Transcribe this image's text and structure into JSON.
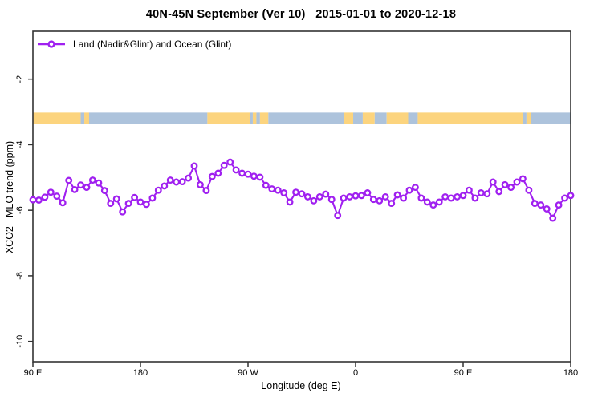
{
  "title": "40N-45N September (Ver 10)   2015-01-01 to 2020-12-18",
  "legend": {
    "label": "Land (Nadir&Glint) and Ocean (Glint)"
  },
  "axes": {
    "xlabel": "Longitude (deg E)",
    "ylabel": "XCO2 - MLO trend (ppm)"
  },
  "colors": {
    "series": "#A020F0",
    "marker_fill": "#FFFFFF",
    "land": "#FCD47E",
    "ocean": "#ADC3DC",
    "axis": "#333333",
    "text": "#000000",
    "background": "#FFFFFF"
  },
  "chart_data": {
    "type": "line",
    "title": "40N-45N September (Ver 10)   2015-01-01 to 2020-12-18",
    "xlabel": "Longitude (deg E)",
    "ylabel": "XCO2 - MLO trend (ppm)",
    "legend_entries": [
      "Land (Nadir&Glint) and Ocean (Glint)"
    ],
    "legend_position": "top-left-inside",
    "grid": false,
    "xlim": [
      90,
      540
    ],
    "ylim": [
      -10.62,
      -0.54
    ],
    "x_ticks": [
      {
        "lon": 90,
        "label": "90 E"
      },
      {
        "lon": 180,
        "label": "180"
      },
      {
        "lon": 270,
        "label": "90 W"
      },
      {
        "lon": 360,
        "label": "0"
      },
      {
        "lon": 450,
        "label": "90 E"
      },
      {
        "lon": 540,
        "label": "180"
      }
    ],
    "y_ticks": [
      {
        "value": -2,
        "label": "-2"
      },
      {
        "value": -4,
        "label": "-4"
      },
      {
        "value": -6,
        "label": "-6"
      },
      {
        "value": -8,
        "label": "-8"
      },
      {
        "value": -10,
        "label": "-10"
      }
    ],
    "x_start": 90,
    "x_step": 5,
    "series": [
      {
        "name": "Land (Nadir&Glint) and Ocean (Glint)",
        "marker": "open-circle",
        "values": [
          -5.68,
          -5.69,
          -5.6,
          -5.45,
          -5.57,
          -5.77,
          -5.09,
          -5.37,
          -5.23,
          -5.3,
          -5.08,
          -5.17,
          -5.4,
          -5.79,
          -5.65,
          -6.05,
          -5.79,
          -5.61,
          -5.75,
          -5.82,
          -5.63,
          -5.39,
          -5.26,
          -5.08,
          -5.14,
          -5.13,
          -5.02,
          -4.65,
          -5.22,
          -5.4,
          -4.97,
          -4.87,
          -4.63,
          -4.53,
          -4.77,
          -4.87,
          -4.9,
          -4.96,
          -4.99,
          -5.24,
          -5.35,
          -5.39,
          -5.47,
          -5.75,
          -5.45,
          -5.5,
          -5.59,
          -5.71,
          -5.59,
          -5.51,
          -5.67,
          -6.16,
          -5.63,
          -5.59,
          -5.56,
          -5.55,
          -5.47,
          -5.67,
          -5.71,
          -5.59,
          -5.79,
          -5.53,
          -5.63,
          -5.39,
          -5.3,
          -5.63,
          -5.75,
          -5.84,
          -5.75,
          -5.59,
          -5.63,
          -5.59,
          -5.55,
          -5.39,
          -5.63,
          -5.47,
          -5.5,
          -5.14,
          -5.43,
          -5.22,
          -5.3,
          -5.14,
          -5.04,
          -5.39,
          -5.79,
          -5.84,
          -5.96,
          -6.24,
          -5.84,
          -5.63,
          -5.55
        ]
      }
    ],
    "map_strip": {
      "description": "land/ocean latitude strip 40N-45N drawn across plot",
      "y_top": -3.02,
      "y_bottom": -3.37,
      "segments": [
        {
          "from": 90,
          "to": 130,
          "type": "land"
        },
        {
          "from": 130,
          "to": 133,
          "type": "ocean"
        },
        {
          "from": 133,
          "to": 137,
          "type": "land"
        },
        {
          "from": 137,
          "to": 236,
          "type": "ocean"
        },
        {
          "from": 236,
          "to": 272,
          "type": "land"
        },
        {
          "from": 272,
          "to": 274,
          "type": "ocean"
        },
        {
          "from": 274,
          "to": 277,
          "type": "land"
        },
        {
          "from": 277,
          "to": 280,
          "type": "ocean"
        },
        {
          "from": 280,
          "to": 287,
          "type": "land"
        },
        {
          "from": 287,
          "to": 350,
          "type": "ocean"
        },
        {
          "from": 350,
          "to": 358,
          "type": "land"
        },
        {
          "from": 358,
          "to": 366,
          "type": "ocean"
        },
        {
          "from": 366,
          "to": 376,
          "type": "land"
        },
        {
          "from": 376,
          "to": 386,
          "type": "ocean"
        },
        {
          "from": 386,
          "to": 404,
          "type": "land"
        },
        {
          "from": 404,
          "to": 412,
          "type": "ocean"
        },
        {
          "from": 412,
          "to": 500,
          "type": "land"
        },
        {
          "from": 500,
          "to": 503,
          "type": "ocean"
        },
        {
          "from": 503,
          "to": 507,
          "type": "land"
        },
        {
          "from": 507,
          "to": 540,
          "type": "ocean"
        }
      ]
    }
  }
}
